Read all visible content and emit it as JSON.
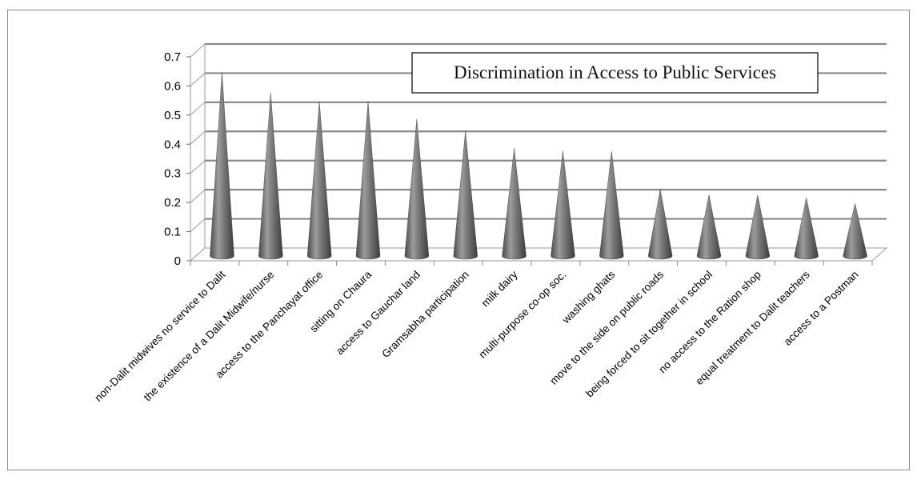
{
  "chart_data": {
    "type": "bar",
    "style": "3d-cone",
    "title": "Discrimination in Access to Public Services",
    "xlabel": "",
    "ylabel": "",
    "ylim": [
      0,
      0.7
    ],
    "yticks": [
      "0",
      "0.1",
      "0.2",
      "0.3",
      "0.4",
      "0.5",
      "0.6",
      "0.7"
    ],
    "grid": true,
    "legend": "none",
    "colors": {
      "cone": "#6e6e6e",
      "grid": "#8a8a8a",
      "axis": "#9a9a9a"
    },
    "categories": [
      "non-Dalit midwives no service to Dalit",
      "the existence of a Dalit Midwife/nurse",
      "access to the Panchayat office",
      "sitting on Chaura",
      "access to Gauchar land",
      "Gramsabha participation",
      "milk dairy",
      "multi-purpose co-op soc.",
      "washing ghats",
      "move to the side on public roads",
      "being forced to sit together in school",
      "no access to the Ration shop",
      "equal treatment to Dalit teachers",
      "access to a Postman"
    ],
    "values": [
      0.63,
      0.56,
      0.53,
      0.53,
      0.47,
      0.43,
      0.37,
      0.36,
      0.36,
      0.23,
      0.21,
      0.21,
      0.2,
      0.18
    ]
  }
}
